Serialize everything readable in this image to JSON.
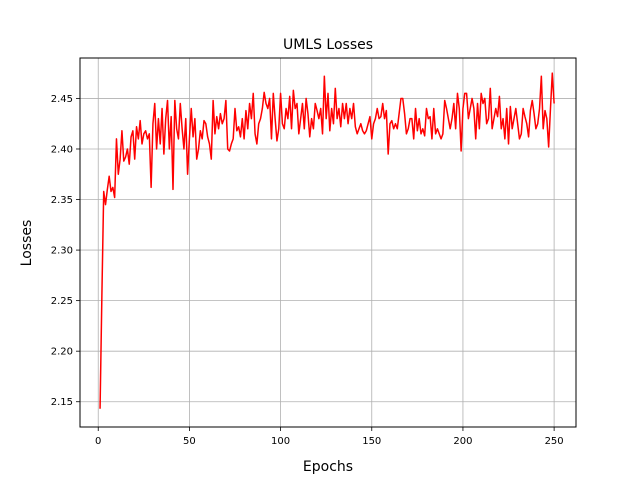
{
  "chart_data": {
    "type": "line",
    "title": "UMLS Losses",
    "xlabel": "Epochs",
    "ylabel": "Losses",
    "xlim": [
      -10,
      262
    ],
    "ylim": [
      2.125,
      2.49
    ],
    "xticks": [
      0,
      50,
      100,
      150,
      200,
      250
    ],
    "yticks": [
      2.15,
      2.2,
      2.25,
      2.3,
      2.35,
      2.4,
      2.45
    ],
    "grid": true,
    "series": [
      {
        "color": "#ff0000",
        "x": [
          1,
          2,
          3,
          4,
          5,
          6,
          7,
          8,
          9,
          10,
          11,
          12,
          13,
          14,
          15,
          16,
          17,
          18,
          19,
          20,
          21,
          22,
          23,
          24,
          25,
          26,
          27,
          28,
          29,
          30,
          31,
          32,
          33,
          34,
          35,
          36,
          37,
          38,
          39,
          40,
          41,
          42,
          43,
          44,
          45,
          46,
          47,
          48,
          49,
          50,
          51,
          52,
          53,
          54,
          55,
          56,
          57,
          58,
          59,
          60,
          61,
          62,
          63,
          64,
          65,
          66,
          67,
          68,
          69,
          70,
          71,
          72,
          73,
          74,
          75,
          76,
          77,
          78,
          79,
          80,
          81,
          82,
          83,
          84,
          85,
          86,
          87,
          88,
          89,
          90,
          91,
          92,
          93,
          94,
          95,
          96,
          97,
          98,
          99,
          100,
          101,
          102,
          103,
          104,
          105,
          106,
          107,
          108,
          109,
          110,
          111,
          112,
          113,
          114,
          115,
          116,
          117,
          118,
          119,
          120,
          121,
          122,
          123,
          124,
          125,
          126,
          127,
          128,
          129,
          130,
          131,
          132,
          133,
          134,
          135,
          136,
          137,
          138,
          139,
          140,
          141,
          142,
          143,
          144,
          145,
          146,
          147,
          148,
          149,
          150,
          151,
          152,
          153,
          154,
          155,
          156,
          157,
          158,
          159,
          160,
          161,
          162,
          163,
          164,
          165,
          166,
          167,
          168,
          169,
          170,
          171,
          172,
          173,
          174,
          175,
          176,
          177,
          178,
          179,
          180,
          181,
          182,
          183,
          184,
          185,
          186,
          187,
          188,
          189,
          190,
          191,
          192,
          193,
          194,
          195,
          196,
          197,
          198,
          199,
          200,
          201,
          202,
          203,
          204,
          205,
          206,
          207,
          208,
          209,
          210,
          211,
          212,
          213,
          214,
          215,
          216,
          217,
          218,
          219,
          220,
          221,
          222,
          223,
          224,
          225,
          226,
          227,
          228,
          229,
          230,
          231,
          232,
          233,
          234,
          235,
          236,
          237,
          238,
          239,
          240,
          241,
          242,
          243,
          244,
          245,
          246,
          247,
          248,
          249,
          250
        ],
        "values": [
          2.143,
          2.255,
          2.358,
          2.345,
          2.36,
          2.373,
          2.358,
          2.362,
          2.352,
          2.41,
          2.375,
          2.39,
          2.418,
          2.388,
          2.392,
          2.4,
          2.385,
          2.412,
          2.418,
          2.39,
          2.422,
          2.41,
          2.428,
          2.405,
          2.415,
          2.418,
          2.41,
          2.415,
          2.362,
          2.425,
          2.445,
          2.4,
          2.43,
          2.405,
          2.44,
          2.395,
          2.43,
          2.448,
          2.4,
          2.432,
          2.36,
          2.448,
          2.42,
          2.41,
          2.445,
          2.42,
          2.4,
          2.43,
          2.375,
          2.41,
          2.44,
          2.412,
          2.43,
          2.39,
          2.4,
          2.418,
          2.41,
          2.428,
          2.425,
          2.412,
          2.405,
          2.39,
          2.448,
          2.415,
          2.432,
          2.42,
          2.435,
          2.425,
          2.43,
          2.448,
          2.4,
          2.398,
          2.405,
          2.41,
          2.44,
          2.418,
          2.422,
          2.412,
          2.43,
          2.41,
          2.438,
          2.42,
          2.445,
          2.43,
          2.455,
          2.415,
          2.405,
          2.425,
          2.43,
          2.44,
          2.456,
          2.445,
          2.44,
          2.45,
          2.41,
          2.455,
          2.43,
          2.408,
          2.42,
          2.455,
          2.425,
          2.42,
          2.44,
          2.43,
          2.452,
          2.42,
          2.458,
          2.44,
          2.445,
          2.415,
          2.43,
          2.445,
          2.42,
          2.45,
          2.435,
          2.412,
          2.43,
          2.42,
          2.445,
          2.438,
          2.43,
          2.44,
          2.415,
          2.472,
          2.43,
          2.455,
          2.418,
          2.44,
          2.425,
          2.46,
          2.43,
          2.44,
          2.422,
          2.445,
          2.43,
          2.445,
          2.425,
          2.44,
          2.43,
          2.445,
          2.422,
          2.415,
          2.42,
          2.425,
          2.418,
          2.415,
          2.418,
          2.425,
          2.432,
          2.41,
          2.425,
          2.43,
          2.44,
          2.43,
          2.432,
          2.445,
          2.43,
          2.438,
          2.395,
          2.425,
          2.428,
          2.42,
          2.425,
          2.42,
          2.435,
          2.45,
          2.45,
          2.435,
          2.415,
          2.42,
          2.43,
          2.43,
          2.41,
          2.44,
          2.418,
          2.43,
          2.415,
          2.42,
          2.413,
          2.44,
          2.43,
          2.432,
          2.41,
          2.44,
          2.415,
          2.42,
          2.415,
          2.41,
          2.415,
          2.448,
          2.44,
          2.43,
          2.42,
          2.43,
          2.445,
          2.42,
          2.455,
          2.44,
          2.398,
          2.44,
          2.455,
          2.455,
          2.43,
          2.44,
          2.45,
          2.44,
          2.41,
          2.445,
          2.42,
          2.455,
          2.445,
          2.45,
          2.425,
          2.43,
          2.46,
          2.42,
          2.43,
          2.44,
          2.432,
          2.452,
          2.42,
          2.43,
          2.41,
          2.44,
          2.405,
          2.442,
          2.42,
          2.43,
          2.44,
          2.425,
          2.41,
          2.415,
          2.44,
          2.432,
          2.425,
          2.412,
          2.438,
          2.448,
          2.435,
          2.42,
          2.425,
          2.44,
          2.472,
          2.42,
          2.438,
          2.43,
          2.402,
          2.44,
          2.475,
          2.445
        ]
      }
    ]
  }
}
